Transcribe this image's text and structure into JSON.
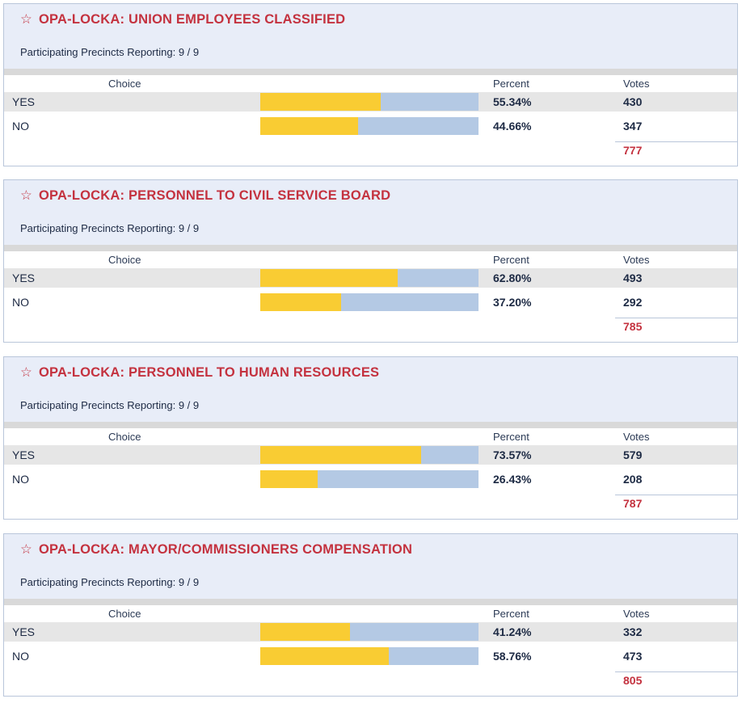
{
  "columns": [
    "Choice",
    "Percent",
    "Votes"
  ],
  "contests": [
    {
      "title": "OPA-LOCKA: UNION EMPLOYEES CLASSIFIED",
      "precincts": "Participating Precincts Reporting: 9 / 9",
      "rows": [
        {
          "choice": "YES",
          "percent": {
            "value": 55.34,
            "label": "55.34%"
          },
          "votes": 430
        },
        {
          "choice": "NO",
          "percent": {
            "value": 44.66,
            "label": "44.66%"
          },
          "votes": 347
        }
      ],
      "total": 777
    },
    {
      "title": "OPA-LOCKA: PERSONNEL TO CIVIL SERVICE BOARD",
      "precincts": "Participating Precincts Reporting: 9 / 9",
      "rows": [
        {
          "choice": "YES",
          "percent": {
            "value": 62.8,
            "label": "62.80%"
          },
          "votes": 493
        },
        {
          "choice": "NO",
          "percent": {
            "value": 37.2,
            "label": "37.20%"
          },
          "votes": 292
        }
      ],
      "total": 785
    },
    {
      "title": "OPA-LOCKA: PERSONNEL TO HUMAN RESOURCES",
      "precincts": "Participating Precincts Reporting: 9 / 9",
      "rows": [
        {
          "choice": "YES",
          "percent": {
            "value": 73.57,
            "label": "73.57%"
          },
          "votes": 579
        },
        {
          "choice": "NO",
          "percent": {
            "value": 26.43,
            "label": "26.43%"
          },
          "votes": 208
        }
      ],
      "total": 787
    },
    {
      "title": "OPA-LOCKA: MAYOR/COMMISSIONERS COMPENSATION",
      "precincts": "Participating Precincts Reporting: 9 / 9",
      "rows": [
        {
          "choice": "YES",
          "percent": {
            "value": 41.24,
            "label": "41.24%"
          },
          "votes": 332
        },
        {
          "choice": "NO",
          "percent": {
            "value": 58.76,
            "label": "58.76%"
          },
          "votes": 473
        }
      ],
      "total": 805
    }
  ]
}
